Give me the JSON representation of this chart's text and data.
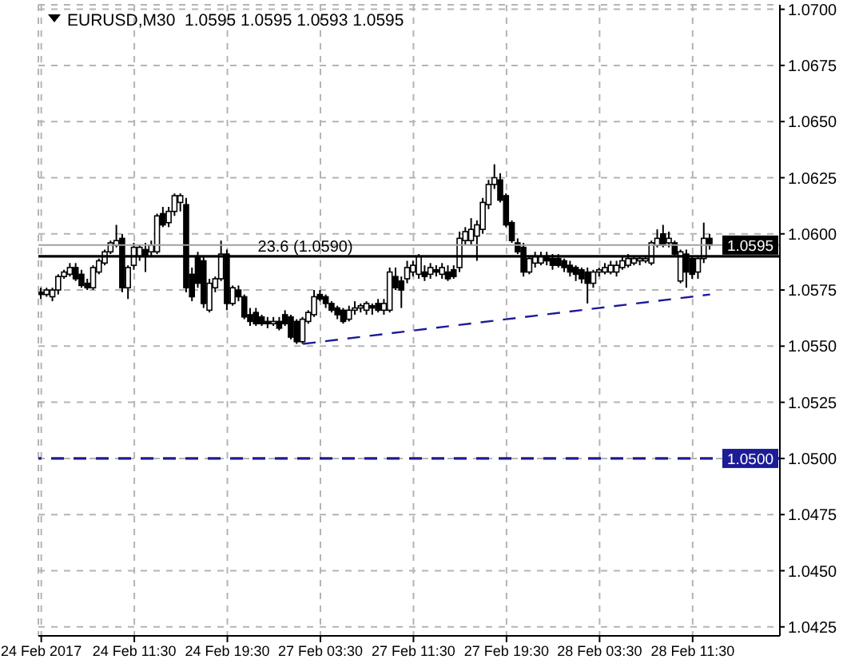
{
  "chart_data": {
    "type": "candlestick",
    "title": "EURUSD,M30  1.0595 1.0595 1.0593 1.0595",
    "categories": [
      "24 Feb 2017",
      null,
      null,
      null,
      null,
      null,
      null,
      null,
      null,
      null,
      null,
      null,
      null,
      null,
      null,
      null,
      "24 Feb 11:30",
      null,
      null,
      null,
      null,
      null,
      null,
      null,
      null,
      null,
      null,
      null,
      null,
      null,
      null,
      null,
      "24 Feb 19:30",
      null,
      null,
      null,
      null,
      null,
      null,
      null,
      null,
      null,
      null,
      null,
      null,
      null,
      null,
      null,
      "27 Feb 03:30",
      null,
      null,
      null,
      null,
      null,
      null,
      null,
      null,
      null,
      null,
      null,
      null,
      null,
      null,
      null,
      "27 Feb 11:30",
      null,
      null,
      null,
      null,
      null,
      null,
      null,
      null,
      null,
      null,
      null,
      null,
      null,
      null,
      null,
      "27 Feb 19:30",
      null,
      null,
      null,
      null,
      null,
      null,
      null,
      null,
      null,
      null,
      null,
      null,
      null,
      null,
      null,
      "28 Feb 03:30",
      null,
      null,
      null,
      null,
      null,
      null,
      null,
      null,
      null,
      null,
      null,
      null,
      null,
      null,
      null,
      "28 Feb 11:30",
      null,
      null,
      null
    ],
    "ohlc": [
      [
        1.0574,
        1.0576,
        1.0571,
        1.0573
      ],
      [
        1.0573,
        1.0576,
        1.0572,
        1.0575
      ],
      [
        1.0572,
        1.0576,
        1.057,
        1.0575
      ],
      [
        1.0575,
        1.0582,
        1.0573,
        1.0581
      ],
      [
        1.0581,
        1.0584,
        1.058,
        1.0583
      ],
      [
        1.0582,
        1.0587,
        1.0581,
        1.0585
      ],
      [
        1.0585,
        1.0587,
        1.0579,
        1.058
      ],
      [
        1.0582,
        1.0584,
        1.0576,
        1.0577
      ],
      [
        1.0578,
        1.058,
        1.0575,
        1.0576
      ],
      [
        1.0576,
        1.0586,
        1.0575,
        1.0585
      ],
      [
        1.0583,
        1.0589,
        1.0582,
        1.0588
      ],
      [
        1.0587,
        1.0593,
        1.0586,
        1.0592
      ],
      [
        1.0592,
        1.0597,
        1.0591,
        1.0596
      ],
      [
        1.0595,
        1.0604,
        1.0594,
        1.0597
      ],
      [
        1.0598,
        1.06,
        1.0574,
        1.0576
      ],
      [
        1.0576,
        1.0586,
        1.0571,
        1.0585
      ],
      [
        1.0586,
        1.0596,
        1.0584,
        1.0594
      ],
      [
        1.059,
        1.0595,
        1.0588,
        1.0594
      ],
      [
        1.0593,
        1.0596,
        1.0583,
        1.059
      ],
      [
        1.0592,
        1.0597,
        1.059,
        1.0595
      ],
      [
        1.0592,
        1.0609,
        1.0591,
        1.0608
      ],
      [
        1.0609,
        1.0612,
        1.0603,
        1.0604
      ],
      [
        1.0605,
        1.0612,
        1.0603,
        1.061
      ],
      [
        1.061,
        1.0618,
        1.0608,
        1.0617
      ],
      [
        1.0614,
        1.0618,
        1.061,
        1.0617
      ],
      [
        1.0613,
        1.0616,
        1.0574,
        1.0576
      ],
      [
        1.0582,
        1.0585,
        1.057,
        1.0572
      ],
      [
        1.059,
        1.0592,
        1.0576,
        1.0578
      ],
      [
        1.0588,
        1.059,
        1.0567,
        1.0569
      ],
      [
        1.0566,
        1.058,
        1.0565,
        1.0578
      ],
      [
        1.0576,
        1.0581,
        1.0574,
        1.058
      ],
      [
        1.058,
        1.0597,
        1.0579,
        1.0591
      ],
      [
        1.0591,
        1.0593,
        1.0566,
        1.0569
      ],
      [
        1.0569,
        1.0577,
        1.0568,
        1.0576
      ],
      [
        1.0575,
        1.0577,
        1.057,
        1.0572
      ],
      [
        1.0572,
        1.0573,
        1.0562,
        1.0563
      ],
      [
        1.0564,
        1.0567,
        1.0559,
        1.0561
      ],
      [
        1.0565,
        1.0567,
        1.0559,
        1.056
      ],
      [
        1.0563,
        1.0564,
        1.0559,
        1.056
      ],
      [
        1.0561,
        1.0563,
        1.0558,
        1.056
      ],
      [
        1.056,
        1.0563,
        1.0559,
        1.0561
      ],
      [
        1.0561,
        1.0563,
        1.0557,
        1.0558
      ],
      [
        1.0564,
        1.0566,
        1.0559,
        1.056
      ],
      [
        1.0563,
        1.0564,
        1.0553,
        1.0554
      ],
      [
        1.0561,
        1.0562,
        1.0551,
        1.0552
      ],
      [
        1.0552,
        1.0563,
        1.0551,
        1.0562
      ],
      [
        1.0561,
        1.0566,
        1.056,
        1.0565
      ],
      [
        1.0564,
        1.0575,
        1.0563,
        1.0572
      ],
      [
        1.0573,
        1.0575,
        1.057,
        1.0571
      ],
      [
        1.0572,
        1.0573,
        1.0567,
        1.0569
      ],
      [
        1.0569,
        1.057,
        1.0565,
        1.0566
      ],
      [
        1.0567,
        1.0568,
        1.0562,
        1.0564
      ],
      [
        1.0566,
        1.0567,
        1.056,
        1.0561
      ],
      [
        1.0562,
        1.0568,
        1.0561,
        1.0566
      ],
      [
        1.0566,
        1.057,
        1.0564,
        1.0567
      ],
      [
        1.0567,
        1.0569,
        1.0565,
        1.0568
      ],
      [
        1.0566,
        1.057,
        1.0564,
        1.0569
      ],
      [
        1.0568,
        1.0569,
        1.0564,
        1.0567
      ],
      [
        1.0569,
        1.0571,
        1.0565,
        1.0566
      ],
      [
        1.0566,
        1.0571,
        1.0564,
        1.0569
      ],
      [
        1.0566,
        1.0585,
        1.0565,
        1.0583
      ],
      [
        1.0581,
        1.0585,
        1.0575,
        1.0576
      ],
      [
        1.0579,
        1.0581,
        1.0567,
        1.0575
      ],
      [
        1.058,
        1.0588,
        1.0578,
        1.0585
      ],
      [
        1.0583,
        1.0588,
        1.0581,
        1.0586
      ],
      [
        1.0582,
        1.0591,
        1.058,
        1.059
      ],
      [
        1.0583,
        1.0586,
        1.0579,
        1.0581
      ],
      [
        1.0582,
        1.0587,
        1.058,
        1.0585
      ],
      [
        1.0584,
        1.0586,
        1.0581,
        1.0583
      ],
      [
        1.0582,
        1.0587,
        1.058,
        1.0585
      ],
      [
        1.0583,
        1.0586,
        1.0579,
        1.058
      ],
      [
        1.0584,
        1.0586,
        1.058,
        1.0581
      ],
      [
        1.0585,
        1.0601,
        1.0583,
        1.0598
      ],
      [
        1.0597,
        1.0603,
        1.0595,
        1.0601
      ],
      [
        1.0597,
        1.0607,
        1.0595,
        1.0602
      ],
      [
        1.0599,
        1.0606,
        1.0588,
        1.0604
      ],
      [
        1.0602,
        1.0616,
        1.06,
        1.0614
      ],
      [
        1.0613,
        1.0624,
        1.0611,
        1.0622
      ],
      [
        1.0622,
        1.0631,
        1.062,
        1.0625
      ],
      [
        1.0624,
        1.0627,
        1.0614,
        1.0615
      ],
      [
        1.0617,
        1.0618,
        1.0603,
        1.0604
      ],
      [
        1.0605,
        1.0606,
        1.0596,
        1.0597
      ],
      [
        1.0596,
        1.0598,
        1.0591,
        1.0592
      ],
      [
        1.0594,
        1.0596,
        1.0581,
        1.0583
      ],
      [
        1.0583,
        1.059,
        1.0582,
        1.0589
      ],
      [
        1.0587,
        1.0592,
        1.0585,
        1.059
      ],
      [
        1.0587,
        1.0592,
        1.0586,
        1.059
      ],
      [
        1.059,
        1.0592,
        1.0586,
        1.0588
      ],
      [
        1.0589,
        1.0591,
        1.0584,
        1.0586
      ],
      [
        1.0589,
        1.0591,
        1.0585,
        1.0586
      ],
      [
        1.0588,
        1.0589,
        1.0583,
        1.0585
      ],
      [
        1.0586,
        1.0588,
        1.0581,
        1.0583
      ],
      [
        1.0585,
        1.0586,
        1.0579,
        1.0582
      ],
      [
        1.0584,
        1.0585,
        1.0578,
        1.058
      ],
      [
        1.0583,
        1.0585,
        1.0569,
        1.0578
      ],
      [
        1.0578,
        1.0584,
        1.0576,
        1.0583
      ],
      [
        1.0583,
        1.0585,
        1.0581,
        1.0584
      ],
      [
        1.0583,
        1.0587,
        1.0582,
        1.0585
      ],
      [
        1.0583,
        1.0588,
        1.0582,
        1.0586
      ],
      [
        1.0583,
        1.0588,
        1.0581,
        1.0586
      ],
      [
        1.0585,
        1.059,
        1.0584,
        1.0588
      ],
      [
        1.0586,
        1.0591,
        1.0585,
        1.0589
      ],
      [
        1.0587,
        1.059,
        1.0586,
        1.0589
      ],
      [
        1.0588,
        1.059,
        1.0586,
        1.0589
      ],
      [
        1.0588,
        1.059,
        1.0587,
        1.0589
      ],
      [
        1.0587,
        1.0597,
        1.0586,
        1.0596
      ],
      [
        1.0595,
        1.0602,
        1.0594,
        1.0598
      ],
      [
        1.06,
        1.0604,
        1.0594,
        1.0595
      ],
      [
        1.0596,
        1.0601,
        1.0594,
        1.0598
      ],
      [
        1.0596,
        1.0597,
        1.059,
        1.0591
      ],
      [
        1.0579,
        1.0593,
        1.0578,
        1.0592
      ],
      [
        1.0591,
        1.0593,
        1.0576,
        1.0583
      ],
      [
        1.0589,
        1.059,
        1.058,
        1.0582
      ],
      [
        1.0583,
        1.059,
        1.058,
        1.0589
      ],
      [
        1.0589,
        1.0605,
        1.0587,
        1.0598
      ],
      [
        1.0598,
        1.06,
        1.0593,
        1.0595
      ]
    ],
    "series": [
      {
        "type": "line",
        "color": "#1c1c96",
        "line_style": "dashed",
        "values": [
          null,
          null,
          null,
          null,
          null,
          null,
          null,
          null,
          null,
          null,
          null,
          null,
          null,
          null,
          null,
          null,
          null,
          null,
          null,
          null,
          null,
          null,
          null,
          null,
          null,
          null,
          null,
          null,
          null,
          null,
          null,
          null,
          null,
          null,
          null,
          null,
          null,
          null,
          null,
          null,
          null,
          null,
          null,
          null,
          null,
          1.0551,
          null,
          null,
          null,
          null,
          null,
          null,
          null,
          null,
          null,
          null,
          null,
          null,
          null,
          null,
          null,
          null,
          null,
          null,
          null,
          null,
          null,
          null,
          null,
          null,
          null,
          null,
          null,
          null,
          null,
          null,
          null,
          null,
          null,
          null,
          null,
          null,
          null,
          null,
          null,
          null,
          null,
          null,
          null,
          null,
          null,
          null,
          null,
          null,
          null,
          null,
          null,
          null,
          null,
          null,
          null,
          null,
          null,
          null,
          null,
          null,
          null,
          null,
          null,
          null,
          null,
          null,
          null,
          null,
          null,
          1.0573
        ]
      }
    ],
    "ylim": [
      1.0421,
      1.0702
    ],
    "yticks": [
      1.0425,
      {
        "value": 1.045,
        "label": "1.0450"
      },
      1.0475,
      {
        "value": 1.05,
        "label": "1.0500"
      },
      1.0525,
      {
        "value": 1.055,
        "label": "1.0550"
      },
      1.0575,
      {
        "value": 1.06,
        "label": "1.0600"
      },
      1.0625,
      {
        "value": 1.065,
        "label": "1.0650"
      },
      1.0675,
      {
        "value": 1.07,
        "label": "1.0700"
      }
    ],
    "ref_lines": [
      {
        "axis": "y",
        "value": 1.0595,
        "label": "1.0595",
        "color": "#a0a0a0",
        "line_style": "solid"
      },
      {
        "axis": "y",
        "value": 1.059,
        "label": "23.6 (1.0590)",
        "color": "#000000",
        "line_style": "solid"
      },
      {
        "axis": "y",
        "value": 1.05,
        "label": "1.0500",
        "color": "#1c1c96",
        "line_style": "dashed"
      }
    ],
    "grid": true
  }
}
